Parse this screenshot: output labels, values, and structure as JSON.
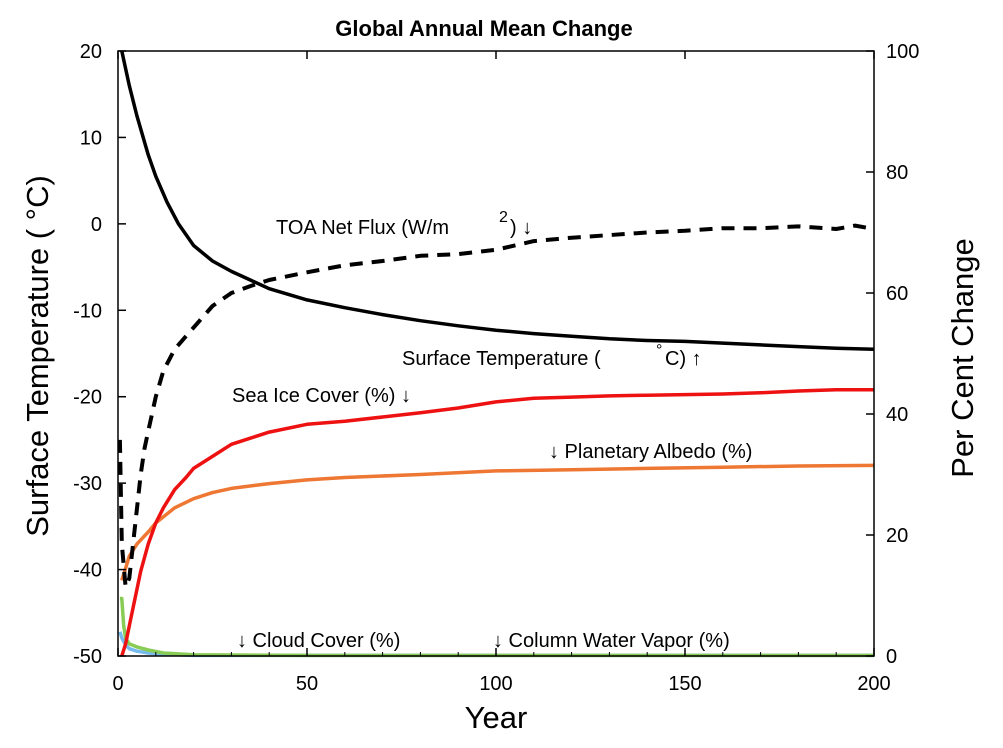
{
  "chart_data": {
    "type": "line",
    "title": "Global Annual Mean Change",
    "xlabel": "Year",
    "ylabel_left": "Surface Temperature (  °C)",
    "ylabel_right": "Per Cent Change",
    "xlim": [
      0,
      200
    ],
    "ylim_left": [
      -50,
      20
    ],
    "ylim_right": [
      0,
      100
    ],
    "x_ticks": [
      "0",
      "50",
      "100",
      "150",
      "200"
    ],
    "y_ticks_left": [
      "20",
      "10",
      "0",
      "-10",
      "-20",
      "-30",
      "-40",
      "-50"
    ],
    "y_ticks_right": [
      "100",
      "80",
      "60",
      "40",
      "20",
      "0"
    ],
    "grid": false,
    "series": [
      {
        "name": "Surface Temperature (  °C) ↑",
        "axis": "left",
        "color": "#000000",
        "style": "solid",
        "x": [
          1,
          3,
          5,
          8,
          10,
          13,
          16,
          20,
          25,
          30,
          35,
          40,
          50,
          60,
          70,
          80,
          90,
          100,
          110,
          120,
          130,
          140,
          150,
          160,
          170,
          180,
          190,
          200
        ],
        "y": [
          20,
          16,
          12.5,
          8,
          5.5,
          2.5,
          0,
          -2.5,
          -4.3,
          -5.5,
          -6.5,
          -7.5,
          -8.8,
          -9.7,
          -10.5,
          -11.2,
          -11.8,
          -12.3,
          -12.7,
          -13.0,
          -13.3,
          -13.5,
          -13.6,
          -13.8,
          -14.0,
          -14.2,
          -14.4,
          -14.5
        ]
      },
      {
        "name": "TOA Net Flux (W/m  2) ↓",
        "axis": "left",
        "color": "#000000",
        "style": "dashed",
        "x": [
          0.5,
          1,
          2,
          3,
          4,
          5,
          6,
          7,
          8,
          10,
          12,
          15,
          18,
          20,
          25,
          30,
          35,
          40,
          50,
          60,
          70,
          80,
          90,
          100,
          110,
          120,
          130,
          140,
          150,
          160,
          170,
          180,
          190,
          195,
          200
        ],
        "y": [
          -25,
          -37,
          -42,
          -41,
          -37,
          -33,
          -29,
          -26,
          -24,
          -20,
          -17,
          -14.5,
          -13,
          -12,
          -9.5,
          -8,
          -7.2,
          -6.5,
          -5.6,
          -4.8,
          -4.3,
          -3.7,
          -3.5,
          -3.0,
          -2.0,
          -1.6,
          -1.3,
          -1.0,
          -0.8,
          -0.5,
          -0.5,
          -0.3,
          -0.6,
          -0.2,
          -0.6
        ]
      },
      {
        "name": "Sea Ice Cover (%) ↓",
        "axis": "right",
        "color": "#ee1111",
        "style": "solid",
        "x": [
          1,
          2,
          3,
          4,
          5,
          6,
          8,
          10,
          12,
          15,
          18,
          20,
          25,
          30,
          35,
          40,
          50,
          60,
          70,
          80,
          90,
          100,
          110,
          120,
          130,
          140,
          150,
          160,
          170,
          180,
          190,
          200
        ],
        "y": [
          0,
          2,
          5,
          8,
          11,
          14,
          18.5,
          22,
          24.5,
          27.5,
          29.5,
          31,
          33,
          35,
          36,
          37,
          38.3,
          38.8,
          39.5,
          40.2,
          41,
          42,
          42.6,
          42.8,
          43,
          43.1,
          43.2,
          43.3,
          43.5,
          43.8,
          44,
          44
        ]
      },
      {
        "name": "↓ Planetary Albedo (%)",
        "axis": "right",
        "color": "#ee7733",
        "style": "solid",
        "x": [
          1,
          2,
          3,
          5,
          8,
          10,
          15,
          20,
          25,
          30,
          40,
          50,
          60,
          80,
          100,
          120,
          140,
          160,
          180,
          200
        ],
        "y": [
          12.5,
          14.5,
          16.5,
          18.5,
          20.5,
          22,
          24.5,
          26,
          27,
          27.7,
          28.5,
          29.1,
          29.5,
          30,
          30.6,
          30.8,
          31,
          31.2,
          31.4,
          31.5
        ]
      },
      {
        "name": "↓ Cloud Cover (%)",
        "axis": "right",
        "color": "#88cc55",
        "style": "solid",
        "x": [
          0.5,
          1,
          1.5,
          2,
          3,
          5,
          8,
          12,
          20,
          50,
          100,
          150,
          200
        ],
        "y": [
          9.5,
          9.5,
          5,
          3,
          2,
          1.5,
          1,
          0.5,
          0.2,
          0.1,
          0.1,
          0.1,
          0.1
        ]
      },
      {
        "name": "↓ Column Water Vapor (%)",
        "axis": "right",
        "color": "#77bbee",
        "style": "solid",
        "x": [
          0.5,
          1,
          2,
          3,
          5,
          8,
          12,
          20,
          50,
          100,
          150,
          200
        ],
        "y": [
          4,
          3,
          1.8,
          1.2,
          0.8,
          0.5,
          0.3,
          0.1,
          0.1,
          0.1,
          0.1,
          0.1
        ]
      }
    ],
    "annotations": {
      "toa_main": "TOA Net Flux (W/m",
      "toa_sup": "2",
      "toa_tail": ") ↓",
      "temp_main": "Surface Temperature (",
      "temp_deg": "°",
      "temp_tail": "C) ↑",
      "seaice": "Sea Ice Cover (%) ↓",
      "albedo": "↓ Planetary Albedo (%)",
      "cloud": "↓ Cloud Cover (%)",
      "vapor": "↓ Column Water Vapor (%)"
    }
  }
}
